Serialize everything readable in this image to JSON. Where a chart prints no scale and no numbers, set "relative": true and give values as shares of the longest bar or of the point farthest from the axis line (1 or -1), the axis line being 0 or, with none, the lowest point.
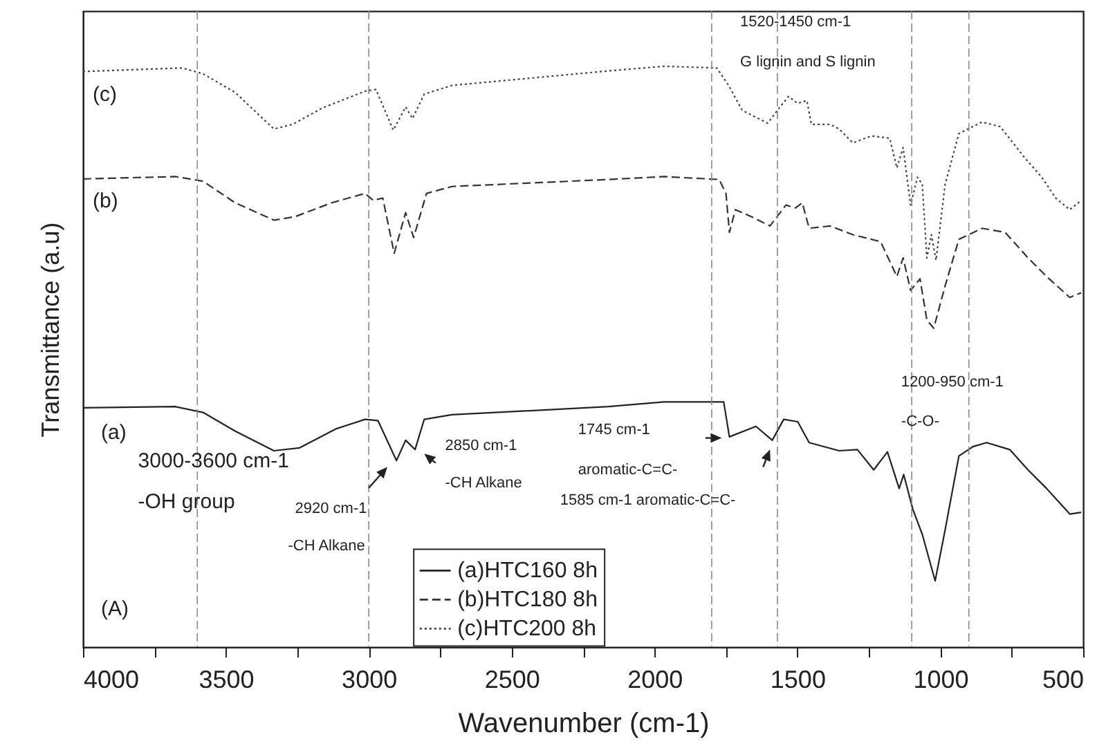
{
  "chart_data": {
    "type": "line",
    "relative": true,
    "xlabel": "Wavenumber (cm-1)",
    "ylabel": "Transmittance (a.u)",
    "xlim": [
      4000,
      500
    ],
    "xticks": [
      4000,
      {
        "value": 3750,
        "label": null
      },
      3500,
      {
        "value": 3250,
        "label": null
      },
      3000,
      {
        "value": 2750,
        "label": null
      },
      2500,
      {
        "value": 2250,
        "label": null
      },
      2000,
      {
        "value": 1750,
        "label": null
      },
      1500,
      {
        "value": 1250,
        "label": null
      },
      1000,
      {
        "value": 750,
        "label": null
      },
      500
    ],
    "legend": "bottom",
    "marker": "none",
    "series": [
      {
        "name": "(a)HTC160 8h",
        "color": "#222222",
        "line_style": "solid",
        "x": [
          4000,
          3677,
          3580,
          3468,
          3332,
          3242,
          3113,
          3013,
          2968,
          2903,
          2871,
          2838,
          2806,
          2709,
          2161,
          1967,
          1758,
          1738,
          1645,
          1588,
          1548,
          1499,
          1459,
          1354,
          1290,
          1233,
          1185,
          1144,
          1128,
          1096,
          1063,
          1018,
          983,
          935,
          886,
          838,
          757,
          693,
          628,
          547,
          507
        ],
        "values": [
          0.412,
          0.414,
          0.404,
          0.372,
          0.338,
          0.343,
          0.376,
          0.392,
          0.39,
          0.321,
          0.356,
          0.34,
          0.392,
          0.4,
          0.414,
          0.422,
          0.422,
          0.362,
          0.38,
          0.356,
          0.392,
          0.388,
          0.352,
          0.338,
          0.34,
          0.305,
          0.336,
          0.273,
          0.297,
          0.237,
          0.194,
          0.114,
          0.202,
          0.329,
          0.345,
          0.352,
          0.34,
          0.305,
          0.273,
          0.229,
          0.232
        ]
      },
      {
        "name": "(b)HTC180 8h",
        "color": "#333333",
        "line_style": "dashed",
        "x": [
          4000,
          3677,
          3580,
          3468,
          3332,
          3258,
          3129,
          3013,
          2984,
          2951,
          2911,
          2871,
          2843,
          2798,
          2709,
          2161,
          1967,
          1774,
          1750,
          1738,
          1717,
          1661,
          1596,
          1540,
          1507,
          1483,
          1459,
          1386,
          1306,
          1209,
          1152,
          1130,
          1104,
          1071,
          1047,
          1023,
          983,
          935,
          854,
          773,
          693,
          628,
          547,
          507
        ],
        "values": [
          0.806,
          0.81,
          0.802,
          0.765,
          0.735,
          0.741,
          0.765,
          0.781,
          0.769,
          0.773,
          0.678,
          0.748,
          0.705,
          0.781,
          0.793,
          0.805,
          0.81,
          0.805,
          0.781,
          0.714,
          0.753,
          0.741,
          0.725,
          0.761,
          0.756,
          0.765,
          0.721,
          0.725,
          0.71,
          0.698,
          0.638,
          0.67,
          0.614,
          0.634,
          0.563,
          0.549,
          0.622,
          0.702,
          0.721,
          0.714,
          0.67,
          0.638,
          0.602,
          0.61
        ]
      },
      {
        "name": "(c)HTC200 8h",
        "color": "#444444",
        "line_style": "dotted",
        "x": [
          4000,
          3653,
          3580,
          3468,
          3332,
          3266,
          3163,
          3013,
          2975,
          2914,
          2871,
          2847,
          2806,
          2709,
          2161,
          1967,
          1782,
          1741,
          1693,
          1604,
          1564,
          1531,
          1499,
          1467,
          1451,
          1386,
          1354,
          1306,
          1241,
          1177,
          1152,
          1130,
          1104,
          1080,
          1063,
          1047,
          1031,
          1015,
          983,
          935,
          854,
          790,
          709,
          645,
          596,
          547,
          507
        ],
        "values": [
          0.991,
          0.997,
          0.987,
          0.955,
          0.892,
          0.9,
          0.928,
          0.957,
          0.96,
          0.89,
          0.93,
          0.91,
          0.952,
          0.967,
          0.992,
          1.0,
          0.997,
          0.967,
          0.924,
          0.902,
          0.928,
          0.948,
          0.936,
          0.941,
          0.9,
          0.9,
          0.892,
          0.868,
          0.88,
          0.876,
          0.825,
          0.86,
          0.761,
          0.809,
          0.797,
          0.67,
          0.71,
          0.666,
          0.797,
          0.884,
          0.904,
          0.896,
          0.845,
          0.809,
          0.773,
          0.753,
          0.769
        ]
      }
    ],
    "ref_lines": [
      {
        "axis": "x",
        "value": 3600,
        "color": "#888888",
        "line_style": "dashed"
      },
      {
        "axis": "x",
        "value": 3000,
        "color": "#888888",
        "line_style": "dashed"
      },
      {
        "axis": "x",
        "value": 1800,
        "color": "#888888",
        "line_style": "dashed"
      },
      {
        "axis": "x",
        "value": 1570,
        "color": "#888888",
        "line_style": "dashed"
      },
      {
        "axis": "x",
        "value": 1100,
        "color": "#888888",
        "line_style": "dashed"
      },
      {
        "axis": "x",
        "value": 900,
        "color": "#888888",
        "line_style": "dashed"
      }
    ],
    "annotations": [
      "(c)",
      "(b)",
      "(a)",
      "3000-3600 cm-1",
      "-OH group",
      "2920 cm-1",
      "-CH Alkane",
      "2850 cm-1",
      "-CH Alkane",
      "1745 cm-1",
      "aromatic-C=C-",
      "1585 cm-1 aromatic-C=C-",
      "1520-1450 cm-1",
      "G lignin and S lignin",
      "1200-950 cm-1",
      "-C-O-",
      "(A)"
    ]
  }
}
